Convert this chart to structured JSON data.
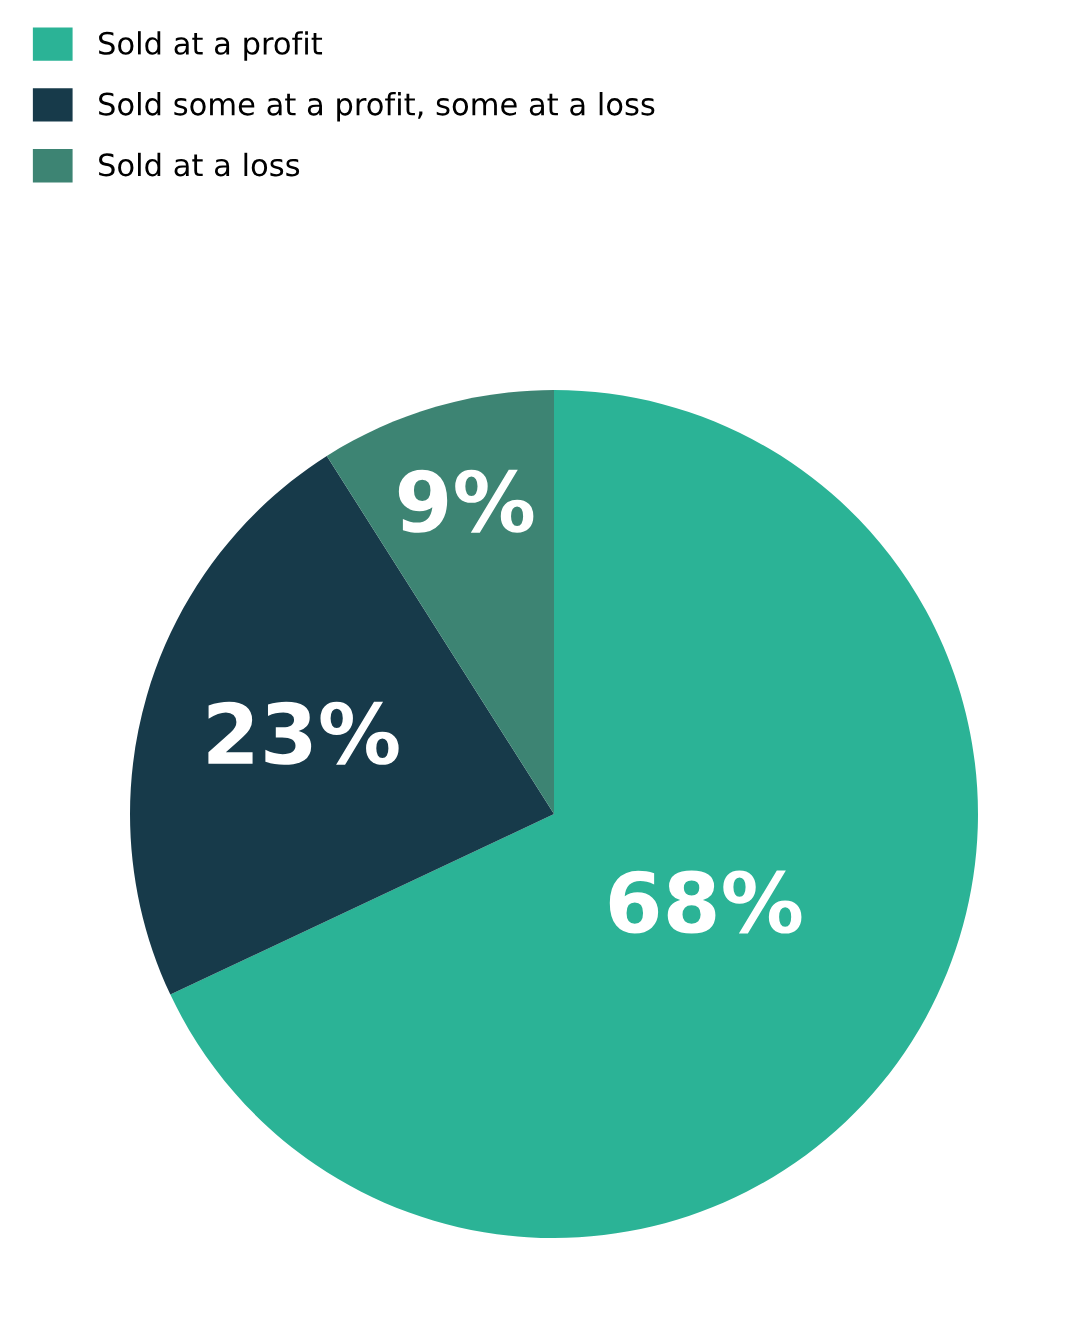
{
  "chart_data": {
    "type": "pie",
    "categories": [
      "Sold at a profit",
      "Sold some at a profit, some at a loss",
      "Sold at a loss"
    ],
    "values": [
      68,
      23,
      9
    ],
    "colors": [
      "#2bb396",
      "#173a4a",
      "#3d8473"
    ],
    "value_labels": [
      "68%",
      "23%",
      "9%"
    ],
    "legend": "top left"
  }
}
